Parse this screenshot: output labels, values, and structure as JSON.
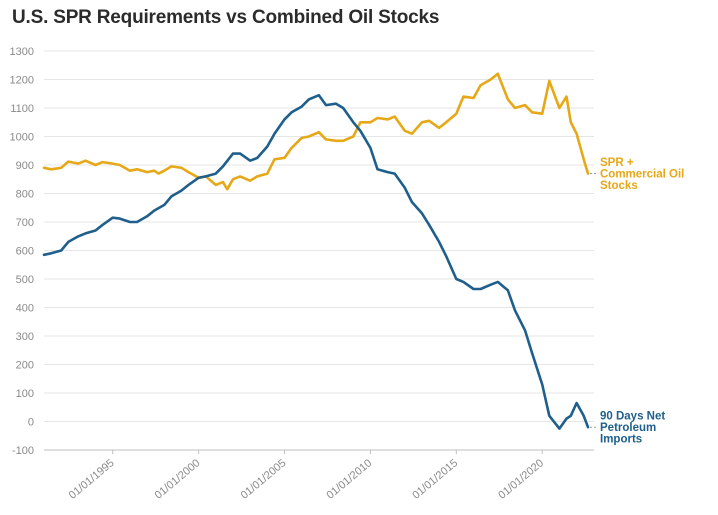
{
  "title": "U.S. SPR Requirements vs Combined Oil Stocks",
  "chart_data": {
    "type": "line",
    "title": "U.S. SPR Requirements vs Combined Oil Stocks",
    "xlabel": "",
    "ylabel": "",
    "xlim": [
      "1991-01-01",
      "2022-09-01"
    ],
    "ylim": [
      -100,
      1300
    ],
    "y_ticks": [
      -100,
      0,
      100,
      200,
      300,
      400,
      500,
      600,
      700,
      800,
      900,
      1000,
      1100,
      1200,
      1300
    ],
    "x_ticks": [
      {
        "date": "1995-01-01",
        "label": "01/01/1995"
      },
      {
        "date": "2000-01-01",
        "label": "01/01/2000"
      },
      {
        "date": "2005-01-01",
        "label": "01/01/2005"
      },
      {
        "date": "2010-01-01",
        "label": "01/01/2010"
      },
      {
        "date": "2015-01-01",
        "label": "01/01/2015"
      },
      {
        "date": "2020-01-01",
        "label": "01/01/2020"
      }
    ],
    "grid": true,
    "legend": "direct labels at line ends",
    "series": [
      {
        "name": "SPR + Commercial Oil Stocks",
        "label_lines": [
          "SPR +",
          "Commercial Oil",
          "Stocks"
        ],
        "color": "#e6a817",
        "points": [
          [
            "1991-01-01",
            890
          ],
          [
            "1991-06-01",
            885
          ],
          [
            "1992-01-01",
            890
          ],
          [
            "1992-06-01",
            912
          ],
          [
            "1993-01-01",
            905
          ],
          [
            "1993-06-01",
            915
          ],
          [
            "1994-01-01",
            900
          ],
          [
            "1994-06-01",
            910
          ],
          [
            "1995-01-01",
            905
          ],
          [
            "1995-06-01",
            900
          ],
          [
            "1996-01-01",
            880
          ],
          [
            "1996-06-01",
            885
          ],
          [
            "1997-01-01",
            875
          ],
          [
            "1997-06-01",
            880
          ],
          [
            "1997-09-01",
            870
          ],
          [
            "1998-01-01",
            880
          ],
          [
            "1998-06-01",
            895
          ],
          [
            "1999-01-01",
            890
          ],
          [
            "1999-06-01",
            875
          ],
          [
            "2000-01-01",
            855
          ],
          [
            "2000-06-01",
            860
          ],
          [
            "2001-01-01",
            830
          ],
          [
            "2001-06-01",
            840
          ],
          [
            "2001-09-01",
            815
          ],
          [
            "2002-01-01",
            850
          ],
          [
            "2002-06-01",
            860
          ],
          [
            "2003-01-01",
            845
          ],
          [
            "2003-06-01",
            860
          ],
          [
            "2004-01-01",
            870
          ],
          [
            "2004-06-01",
            920
          ],
          [
            "2005-01-01",
            925
          ],
          [
            "2005-06-01",
            960
          ],
          [
            "2006-01-01",
            995
          ],
          [
            "2006-06-01",
            1000
          ],
          [
            "2007-01-01",
            1015
          ],
          [
            "2007-06-01",
            990
          ],
          [
            "2008-01-01",
            985
          ],
          [
            "2008-06-01",
            985
          ],
          [
            "2009-01-01",
            1000
          ],
          [
            "2009-06-01",
            1050
          ],
          [
            "2010-01-01",
            1050
          ],
          [
            "2010-06-01",
            1065
          ],
          [
            "2011-01-01",
            1060
          ],
          [
            "2011-06-01",
            1070
          ],
          [
            "2012-01-01",
            1020
          ],
          [
            "2012-06-01",
            1010
          ],
          [
            "2013-01-01",
            1050
          ],
          [
            "2013-06-01",
            1055
          ],
          [
            "2014-01-01",
            1030
          ],
          [
            "2014-06-01",
            1050
          ],
          [
            "2015-01-01",
            1080
          ],
          [
            "2015-06-01",
            1140
          ],
          [
            "2016-01-01",
            1135
          ],
          [
            "2016-06-01",
            1180
          ],
          [
            "2017-01-01",
            1200
          ],
          [
            "2017-06-01",
            1220
          ],
          [
            "2018-01-01",
            1130
          ],
          [
            "2018-06-01",
            1100
          ],
          [
            "2019-01-01",
            1110
          ],
          [
            "2019-06-01",
            1085
          ],
          [
            "2020-01-01",
            1080
          ],
          [
            "2020-06-01",
            1195
          ],
          [
            "2021-01-01",
            1100
          ],
          [
            "2021-06-01",
            1140
          ],
          [
            "2021-09-01",
            1050
          ],
          [
            "2022-01-01",
            1010
          ],
          [
            "2022-06-01",
            920
          ],
          [
            "2022-09-01",
            870
          ]
        ]
      },
      {
        "name": "90 Days Net Petroleum Imports",
        "label_lines": [
          "90 Days Net",
          "Petroleum",
          "Imports"
        ],
        "color": "#1f5f8b",
        "points": [
          [
            "1991-01-01",
            585
          ],
          [
            "1991-06-01",
            590
          ],
          [
            "1992-01-01",
            600
          ],
          [
            "1992-06-01",
            630
          ],
          [
            "1993-01-01",
            650
          ],
          [
            "1993-06-01",
            660
          ],
          [
            "1994-01-01",
            670
          ],
          [
            "1994-06-01",
            690
          ],
          [
            "1995-01-01",
            715
          ],
          [
            "1995-06-01",
            712
          ],
          [
            "1996-01-01",
            700
          ],
          [
            "1996-06-01",
            700
          ],
          [
            "1997-01-01",
            720
          ],
          [
            "1997-06-01",
            740
          ],
          [
            "1998-01-01",
            760
          ],
          [
            "1998-06-01",
            790
          ],
          [
            "1999-01-01",
            810
          ],
          [
            "1999-06-01",
            830
          ],
          [
            "2000-01-01",
            855
          ],
          [
            "2000-06-01",
            860
          ],
          [
            "2001-01-01",
            870
          ],
          [
            "2001-06-01",
            895
          ],
          [
            "2002-01-01",
            940
          ],
          [
            "2002-06-01",
            940
          ],
          [
            "2003-01-01",
            915
          ],
          [
            "2003-06-01",
            925
          ],
          [
            "2004-01-01",
            965
          ],
          [
            "2004-06-01",
            1010
          ],
          [
            "2005-01-01",
            1060
          ],
          [
            "2005-06-01",
            1085
          ],
          [
            "2006-01-01",
            1105
          ],
          [
            "2006-06-01",
            1130
          ],
          [
            "2007-01-01",
            1145
          ],
          [
            "2007-06-01",
            1110
          ],
          [
            "2008-01-01",
            1115
          ],
          [
            "2008-06-01",
            1100
          ],
          [
            "2009-01-01",
            1050
          ],
          [
            "2009-06-01",
            1020
          ],
          [
            "2010-01-01",
            960
          ],
          [
            "2010-06-01",
            885
          ],
          [
            "2011-01-01",
            875
          ],
          [
            "2011-06-01",
            870
          ],
          [
            "2012-01-01",
            820
          ],
          [
            "2012-06-01",
            770
          ],
          [
            "2013-01-01",
            730
          ],
          [
            "2013-06-01",
            690
          ],
          [
            "2014-01-01",
            630
          ],
          [
            "2014-06-01",
            580
          ],
          [
            "2015-01-01",
            500
          ],
          [
            "2015-06-01",
            490
          ],
          [
            "2016-01-01",
            465
          ],
          [
            "2016-06-01",
            465
          ],
          [
            "2017-01-01",
            480
          ],
          [
            "2017-06-01",
            490
          ],
          [
            "2018-01-01",
            460
          ],
          [
            "2018-06-01",
            390
          ],
          [
            "2019-01-01",
            320
          ],
          [
            "2019-06-01",
            240
          ],
          [
            "2020-01-01",
            130
          ],
          [
            "2020-06-01",
            20
          ],
          [
            "2021-01-01",
            -25
          ],
          [
            "2021-06-01",
            10
          ],
          [
            "2021-09-01",
            20
          ],
          [
            "2022-01-01",
            65
          ],
          [
            "2022-06-01",
            20
          ],
          [
            "2022-09-01",
            -20
          ]
        ]
      }
    ]
  }
}
